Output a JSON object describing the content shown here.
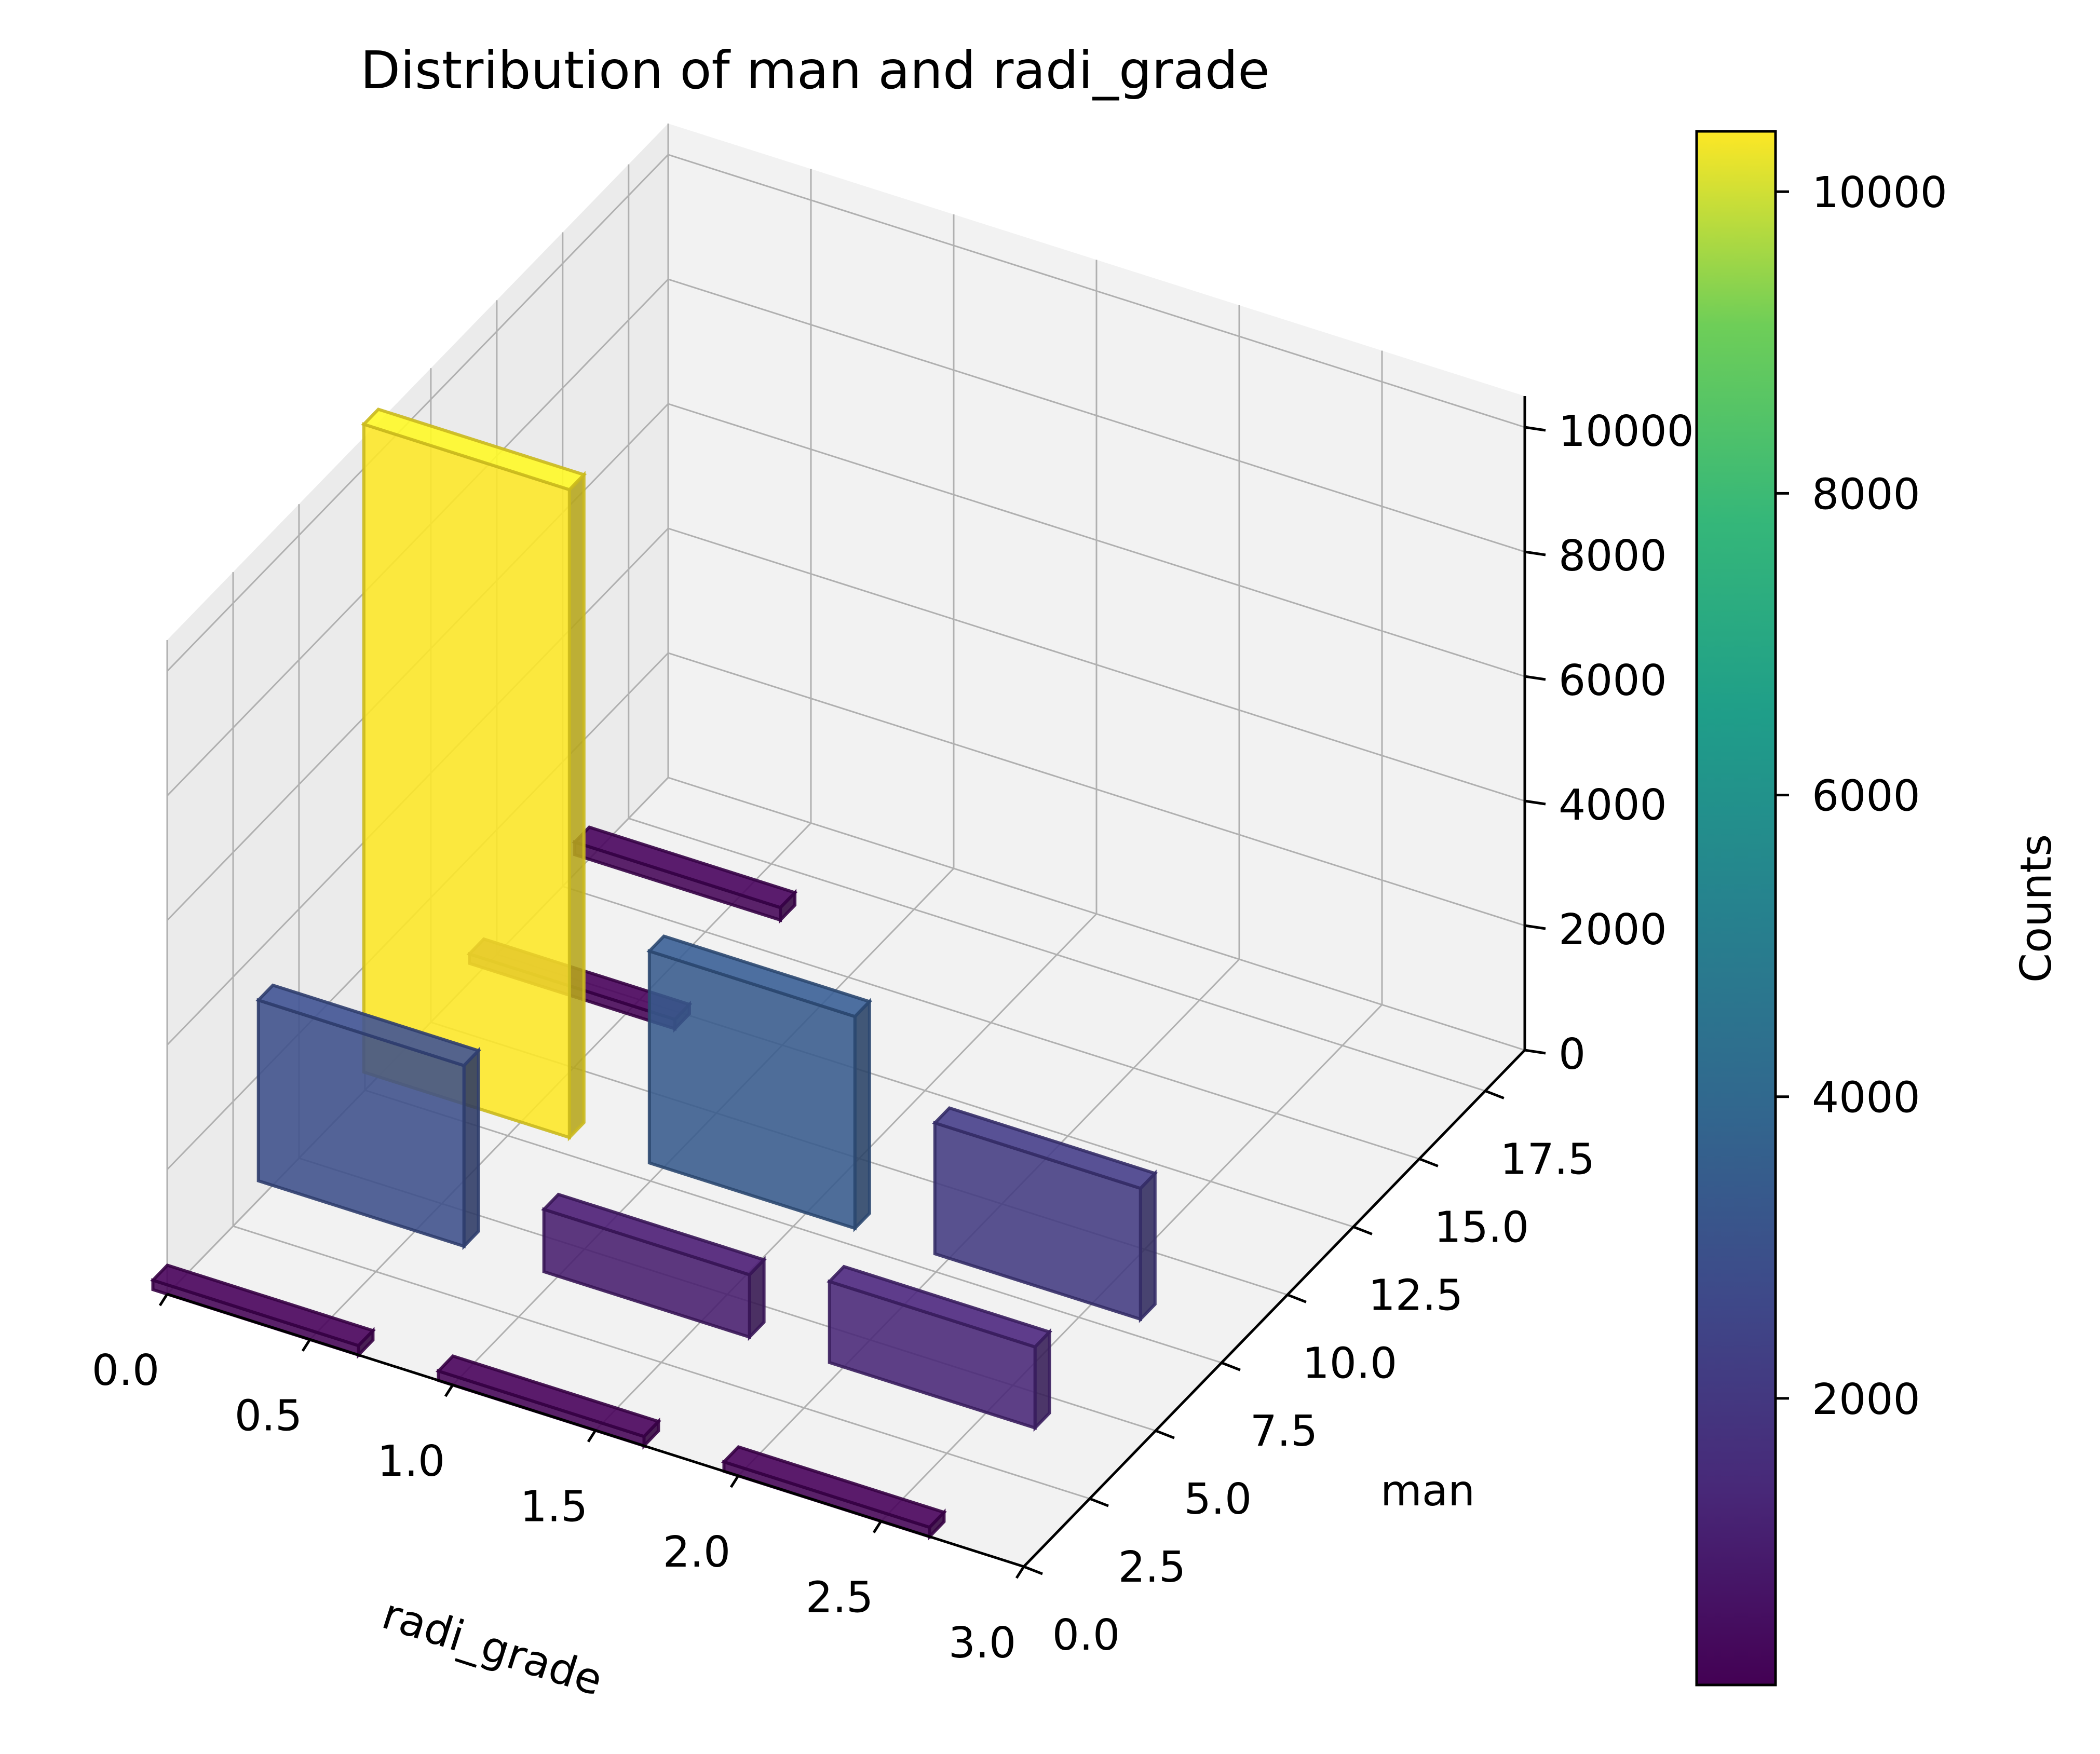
{
  "chart_data": {
    "type": "bar3d",
    "title": "Distribution of man and radi_grade",
    "xlabel": "radi_grade",
    "ylabel": "man",
    "zlabel": "",
    "xlim": [
      0,
      3.0
    ],
    "ylim": [
      0,
      19
    ],
    "zlim": [
      0,
      10500
    ],
    "x_ticks": [
      "0.0",
      "0.5",
      "1.0",
      "1.5",
      "2.0",
      "2.5",
      "3.0"
    ],
    "y_ticks": [
      "0.0",
      "2.5",
      "5.0",
      "7.5",
      "10.0",
      "12.5",
      "15.0",
      "17.5"
    ],
    "z_ticks": [
      "0",
      "2000",
      "4000",
      "6000",
      "8000",
      "10000"
    ],
    "grid": true,
    "colormap": "viridis",
    "colorbar": {
      "label": "Counts",
      "ticks": [
        "2000",
        "4000",
        "6000",
        "8000",
        "10000"
      ],
      "range": [
        100,
        10400
      ]
    },
    "bars": [
      {
        "radi_grade": 0,
        "man": 0,
        "count": 150
      },
      {
        "radi_grade": 0,
        "man": 4,
        "count": 2900
      },
      {
        "radi_grade": 0,
        "man": 8,
        "count": 10400
      },
      {
        "radi_grade": 0,
        "man": 12,
        "count": 150
      },
      {
        "radi_grade": 0,
        "man": 16,
        "count": 200
      },
      {
        "radi_grade": 1,
        "man": 0,
        "count": 150
      },
      {
        "radi_grade": 1,
        "man": 4,
        "count": 1000
      },
      {
        "radi_grade": 1,
        "man": 8,
        "count": 3400
      },
      {
        "radi_grade": 2,
        "man": 0,
        "count": 150
      },
      {
        "radi_grade": 2,
        "man": 4,
        "count": 1300
      },
      {
        "radi_grade": 2,
        "man": 8,
        "count": 2100
      }
    ]
  }
}
